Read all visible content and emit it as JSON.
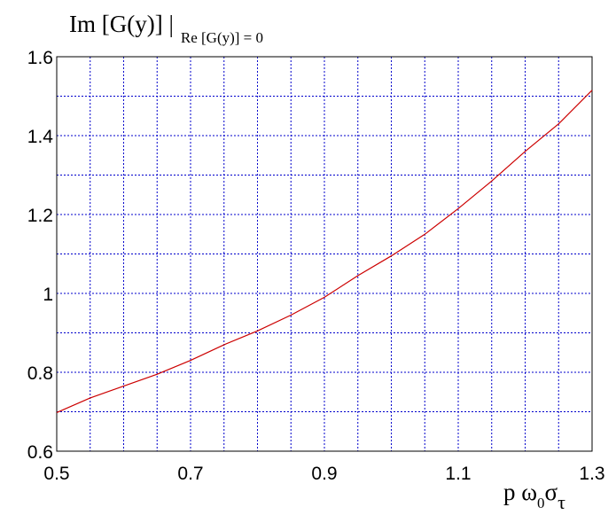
{
  "chart_data": {
    "type": "line",
    "ylabel_main": "Im [G(y)] |",
    "ylabel_sub": "Re [G(y)] = 0",
    "xlabel_main": "p ω",
    "xlabel_sub0": "0",
    "xlabel_sigma": "σ",
    "xlabel_tau": "τ",
    "xlim": [
      0.5,
      1.3
    ],
    "ylim": [
      0.6,
      1.6
    ],
    "x_ticks": [
      0.5,
      0.7,
      0.9,
      1.1,
      1.3
    ],
    "x_tick_labels": [
      "0.5",
      "0.7",
      "0.9",
      "1.1",
      "1.3"
    ],
    "y_ticks": [
      0.6,
      0.8,
      1.0,
      1.2,
      1.4,
      1.6
    ],
    "y_tick_labels": [
      "0.6",
      "0.8",
      "1",
      "1.2",
      "1.4",
      "1.6"
    ],
    "grid": true,
    "line_color": "#cc0000",
    "grid_color": "#0000cc",
    "series": [
      {
        "x": [
          0.5,
          0.55,
          0.6,
          0.65,
          0.7,
          0.75,
          0.8,
          0.85,
          0.9,
          0.95,
          1.0,
          1.05,
          1.1,
          1.15,
          1.2,
          1.25,
          1.3
        ],
        "y": [
          0.698,
          0.735,
          0.765,
          0.795,
          0.83,
          0.87,
          0.905,
          0.945,
          0.99,
          1.045,
          1.095,
          1.15,
          1.215,
          1.285,
          1.36,
          1.43,
          1.515
        ]
      }
    ]
  }
}
